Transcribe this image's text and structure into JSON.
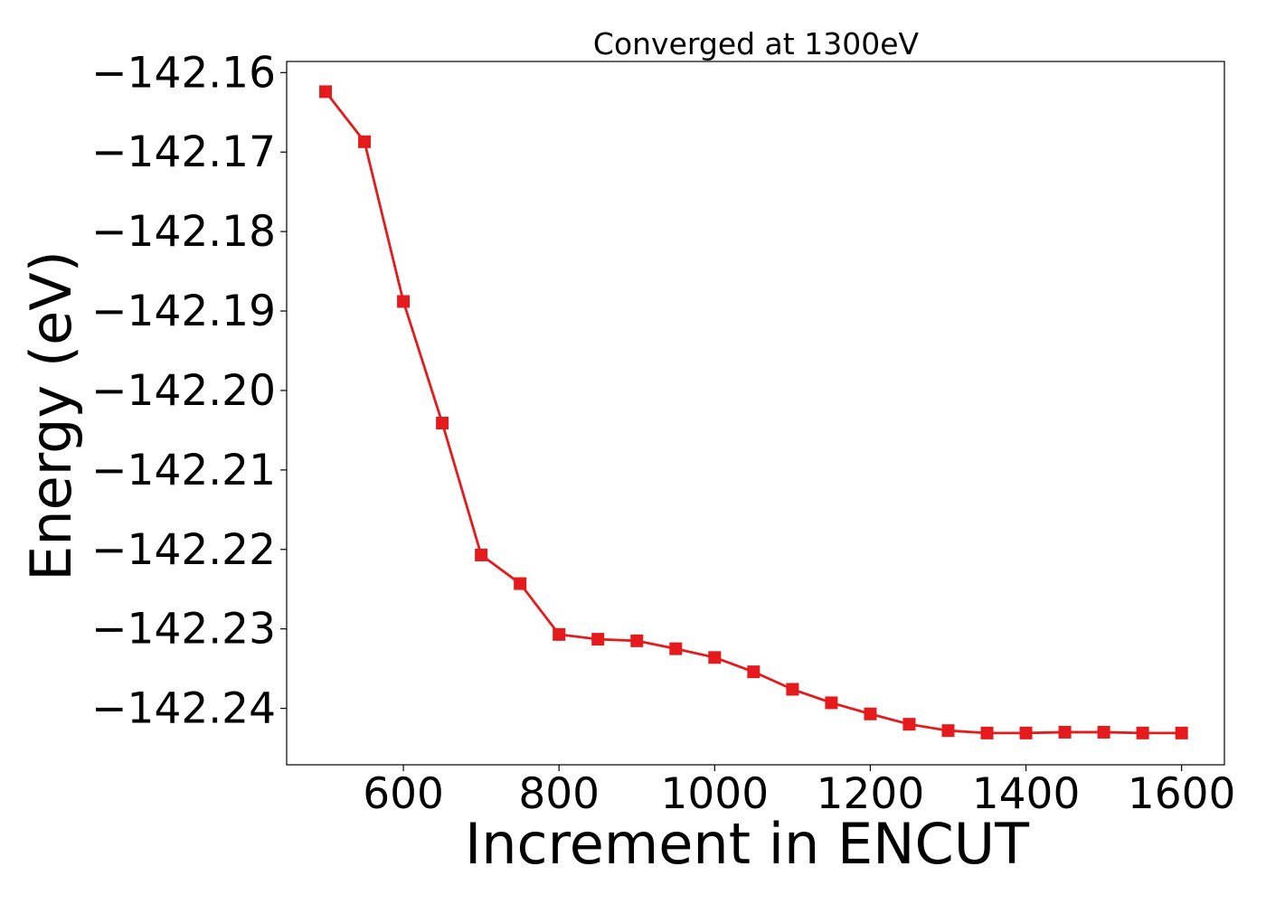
{
  "chart_data": {
    "type": "line",
    "title": "Converged at 1300eV",
    "xlabel": "Increment in ENCUT",
    "ylabel": "Energy (eV)",
    "xlim": [
      450,
      1655
    ],
    "ylim": [
      -142.2471,
      -142.1586
    ],
    "xticks": [
      600,
      800,
      1000,
      1200,
      1400,
      1600
    ],
    "xtick_labels": [
      "600",
      "800",
      "1000",
      "1200",
      "1400",
      "1600"
    ],
    "yticks": [
      -142.16,
      -142.17,
      -142.18,
      -142.19,
      -142.2,
      -142.21,
      -142.22,
      -142.23,
      -142.24
    ],
    "ytick_labels": [
      "−142.16",
      "−142.17",
      "−142.18",
      "−142.19",
      "−142.20",
      "−142.21",
      "−142.22",
      "−142.23",
      "−142.24"
    ],
    "grid": false,
    "series": [
      {
        "color": "#e41a1c",
        "marker": "square",
        "x": [
          500,
          550,
          600,
          650,
          700,
          750,
          800,
          850,
          900,
          950,
          1000,
          1050,
          1100,
          1150,
          1200,
          1250,
          1300,
          1350,
          1400,
          1450,
          1500,
          1550,
          1600
        ],
        "y": [
          -142.1624,
          -142.1687,
          -142.1888,
          -142.2041,
          -142.2207,
          -142.2243,
          -142.2307,
          -142.2313,
          -142.2315,
          -142.2325,
          -142.2336,
          -142.2354,
          -142.2376,
          -142.2393,
          -142.2407,
          -142.242,
          -142.2428,
          -142.2431,
          -142.2431,
          -142.243,
          -142.243,
          -142.2431,
          -142.2431
        ]
      }
    ]
  }
}
